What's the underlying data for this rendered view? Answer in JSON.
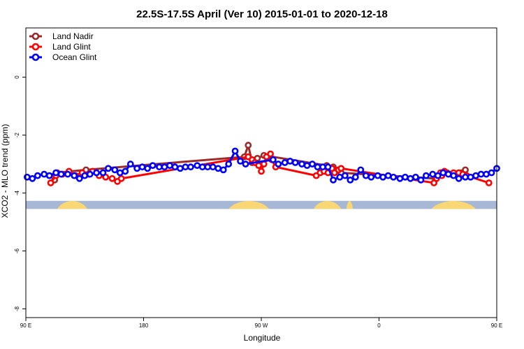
{
  "chart_data": {
    "type": "line",
    "title": "22.5S-17.5S April (Ver 10)   2015-01-01 to 2020-12-18",
    "xlabel": "Longitude",
    "ylabel": "XCO2 - MLO trend (ppm)",
    "xlim": [
      -90,
      270
    ],
    "ylim": [
      -8.3,
      1.7
    ],
    "x_ticks": [
      {
        "value": -90,
        "label": "90 E"
      },
      {
        "value": 0,
        "label": "180"
      },
      {
        "value": 90,
        "label": "90 W"
      },
      {
        "value": 180,
        "label": "0"
      },
      {
        "value": 270,
        "label": "90 E"
      },
      {
        "value": 360,
        "label": "180"
      }
    ],
    "y_ticks": [
      {
        "value": 0,
        "label": "0"
      },
      {
        "value": -2,
        "label": "-2"
      },
      {
        "value": -4,
        "label": "-4"
      },
      {
        "value": -6,
        "label": "-6"
      },
      {
        "value": -8,
        "label": "-8"
      }
    ],
    "legend_position": "top-left",
    "land_ocean_strip": {
      "y_range": [
        -4.55,
        -4.27
      ],
      "ocean_color": "#a6b8d6",
      "land_color": "#f8d774",
      "land_segments": [
        [
          -66,
          -43
        ],
        [
          65,
          96
        ],
        [
          130,
          151
        ],
        [
          155,
          160
        ],
        [
          220,
          254
        ]
      ]
    },
    "series": [
      {
        "name": "Land Nadir",
        "color": "#9b2a2a",
        "x": [
          -68,
          -66,
          -44,
          77,
          80,
          83,
          87,
          92,
          140,
          145,
          151,
          223,
          228,
          232,
          246
        ],
        "y": [
          -3.55,
          -3.3,
          -3.2,
          -2.75,
          -2.35,
          -2.95,
          -2.8,
          -2.7,
          -3.05,
          -3.1,
          -3.3,
          -3.5,
          -3.3,
          -3.3,
          -3.2
        ]
      },
      {
        "name": "Land Glint",
        "color": "#ff0000",
        "x": [
          -71,
          -67,
          -62,
          -57,
          -52,
          -47,
          -42,
          -39,
          -34,
          -29,
          -24,
          -20,
          -17,
          80,
          83,
          85,
          88,
          90,
          92,
          94,
          97,
          98,
          101,
          132,
          135,
          138,
          141,
          144,
          146,
          149,
          151,
          222,
          224,
          227,
          228,
          230,
          235,
          237,
          241,
          244,
          247,
          264
        ],
        "y": [
          -3.65,
          -3.4,
          -3.35,
          -3.25,
          -3.4,
          -3.3,
          -3.35,
          -3.25,
          -3.4,
          -3.45,
          -3.5,
          -3.6,
          -3.5,
          -2.75,
          -2.85,
          -2.95,
          -3.05,
          -3.25,
          -3.0,
          -2.75,
          -2.65,
          -2.85,
          -3.1,
          -3.4,
          -3.3,
          -3.25,
          -3.3,
          -3.15,
          -3.3,
          -3.2,
          -3.15,
          -3.65,
          -3.5,
          -3.3,
          -3.4,
          -3.25,
          -3.35,
          -3.3,
          -3.3,
          -3.35,
          -3.4,
          -3.65
        ]
      },
      {
        "name": "Ocean Glint",
        "color": "#0000ff",
        "x": [
          -89,
          -85,
          -81,
          -76,
          -72,
          -67,
          -63,
          -58,
          -53,
          -49,
          -45,
          -41,
          -36,
          -31,
          -27,
          -22,
          -18,
          -14,
          -10,
          -5,
          -1,
          3,
          7,
          12,
          16,
          20,
          24,
          28,
          32,
          36,
          41,
          45,
          49,
          53,
          57,
          61,
          65,
          70,
          74,
          78,
          99,
          103,
          108,
          112,
          116,
          121,
          125,
          129,
          133,
          137,
          141,
          145,
          150,
          154,
          158,
          162,
          166,
          170,
          174,
          179,
          183,
          187,
          191,
          196,
          200,
          204,
          208,
          212,
          216,
          221,
          225,
          229,
          233,
          237,
          241,
          246,
          250,
          254,
          258,
          262,
          266,
          270
        ],
        "y": [
          -3.45,
          -3.5,
          -3.4,
          -3.35,
          -3.4,
          -3.3,
          -3.35,
          -3.35,
          -3.4,
          -3.5,
          -3.4,
          -3.35,
          -3.3,
          -3.3,
          -3.15,
          -3.2,
          -3.3,
          -3.25,
          -3.0,
          -3.15,
          -3.1,
          -3.15,
          -3.05,
          -3.1,
          -3.1,
          -3.05,
          -3.1,
          -3.15,
          -3.1,
          -3.1,
          -3.05,
          -3.1,
          -3.1,
          -3.1,
          -3.15,
          -3.2,
          -3.0,
          -2.55,
          -2.9,
          -3.0,
          -2.85,
          -3.0,
          -2.95,
          -2.9,
          -2.95,
          -3.0,
          -3.05,
          -3.0,
          -3.1,
          -3.1,
          -3.1,
          -3.55,
          -3.45,
          -3.4,
          -3.55,
          -3.45,
          -3.2,
          -3.4,
          -3.45,
          -3.4,
          -3.45,
          -3.4,
          -3.45,
          -3.5,
          -3.45,
          -3.5,
          -3.45,
          -3.55,
          -3.4,
          -3.35,
          -3.4,
          -3.3,
          -3.35,
          -3.4,
          -3.5,
          -3.45,
          -3.45,
          -3.4,
          -3.35,
          -3.35,
          -3.3,
          -3.15
        ]
      }
    ]
  }
}
